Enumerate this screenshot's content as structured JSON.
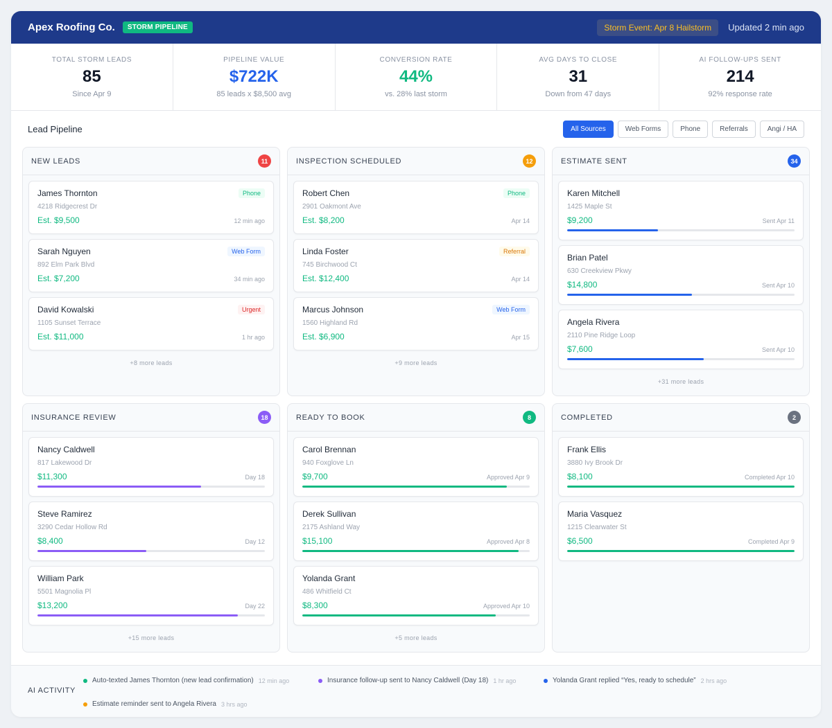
{
  "header": {
    "brand": "Apex Roofing Co.",
    "badge": "STORM PIPELINE",
    "storm_event": "Storm Event: Apr 8 Hailstorm",
    "updated": "Updated 2 min ago"
  },
  "stats": [
    {
      "label": "TOTAL STORM LEADS",
      "value": "85",
      "sub": "Since Apr 9"
    },
    {
      "label": "PIPELINE VALUE",
      "value": "$722K",
      "sub": "85 leads x $8,500 avg"
    },
    {
      "label": "CONVERSION RATE",
      "value": "44%",
      "sub": "vs. 28% last storm"
    },
    {
      "label": "AVG DAYS TO CLOSE",
      "value": "31",
      "sub": "Down from 47 days"
    },
    {
      "label": "AI FOLLOW-UPS SENT",
      "value": "214",
      "sub": "92% response rate"
    }
  ],
  "pipeline": {
    "title": "Lead Pipeline",
    "filters": [
      "All Sources",
      "Web Forms",
      "Phone",
      "Referrals",
      "Angi / HA"
    ]
  },
  "columns": [
    {
      "title": "NEW LEADS",
      "count": "11",
      "color": "#ef4444",
      "cards": [
        {
          "name": "James Thornton",
          "addr": "4218 Ridgecrest Dr",
          "amount": "Est. $9,500",
          "meta": "12 min ago",
          "tag": "Phone"
        },
        {
          "name": "Sarah Nguyen",
          "addr": "892 Elm Park Blvd",
          "amount": "Est. $7,200",
          "meta": "34 min ago",
          "tag": "Web Form"
        },
        {
          "name": "David Kowalski",
          "addr": "1105 Sunset Terrace",
          "amount": "Est. $11,000",
          "meta": "1 hr ago",
          "tag": "Urgent"
        }
      ],
      "more": "+8 more leads"
    },
    {
      "title": "INSPECTION SCHEDULED",
      "count": "12",
      "color": "#f59e0b",
      "cards": [
        {
          "name": "Robert Chen",
          "addr": "2901 Oakmont Ave",
          "amount": "Est. $8,200",
          "meta": "Apr 14",
          "tag": "Phone"
        },
        {
          "name": "Linda Foster",
          "addr": "745 Birchwood Ct",
          "amount": "Est. $12,400",
          "meta": "Apr 14",
          "tag": "Referral"
        },
        {
          "name": "Marcus Johnson",
          "addr": "1560 Highland Rd",
          "amount": "Est. $6,900",
          "meta": "Apr 15",
          "tag": "Web Form"
        }
      ],
      "more": "+9 more leads"
    },
    {
      "title": "ESTIMATE SENT",
      "count": "34",
      "color": "#2563eb",
      "cards": [
        {
          "name": "Karen Mitchell",
          "addr": "1425 Maple St",
          "amount": "$9,200",
          "meta": "Sent Apr 11",
          "progress": 0.4
        },
        {
          "name": "Brian Patel",
          "addr": "630 Creekview Pkwy",
          "amount": "$14,800",
          "meta": "Sent Apr 10",
          "progress": 0.55
        },
        {
          "name": "Angela Rivera",
          "addr": "2110 Pine Ridge Loop",
          "amount": "$7,600",
          "meta": "Sent Apr 10",
          "progress": 0.6
        }
      ],
      "more": "+31 more leads"
    },
    {
      "title": "INSURANCE REVIEW",
      "count": "18",
      "color": "#8b5cf6",
      "cards": [
        {
          "name": "Nancy Caldwell",
          "addr": "817 Lakewood Dr",
          "amount": "$11,300",
          "meta": "Day 18",
          "progress": 0.72
        },
        {
          "name": "Steve Ramirez",
          "addr": "3290 Cedar Hollow Rd",
          "amount": "$8,400",
          "meta": "Day 12",
          "progress": 0.48
        },
        {
          "name": "William Park",
          "addr": "5501 Magnolia Pl",
          "amount": "$13,200",
          "meta": "Day 22",
          "progress": 0.88
        }
      ],
      "more": "+15 more leads"
    },
    {
      "title": "READY TO BOOK",
      "count": "8",
      "color": "#10b981",
      "cards": [
        {
          "name": "Carol Brennan",
          "addr": "940 Foxglove Ln",
          "amount": "$9,700",
          "meta": "Approved Apr 9",
          "progress": 0.9
        },
        {
          "name": "Derek Sullivan",
          "addr": "2175 Ashland Way",
          "amount": "$15,100",
          "meta": "Approved Apr 8",
          "progress": 0.95
        },
        {
          "name": "Yolanda Grant",
          "addr": "486 Whitfield Ct",
          "amount": "$8,300",
          "meta": "Approved Apr 10",
          "progress": 0.85
        }
      ],
      "more": "+5 more leads"
    },
    {
      "title": "COMPLETED",
      "count": "2",
      "color": "#6b7280",
      "cards": [
        {
          "name": "Frank Ellis",
          "addr": "3880 Ivy Brook Dr",
          "amount": "$8,100",
          "meta": "Completed Apr 10",
          "progress": 1.0
        },
        {
          "name": "Maria Vasquez",
          "addr": "1215 Clearwater St",
          "amount": "$6,500",
          "meta": "Completed Apr 9",
          "progress": 1.0
        }
      ],
      "more": ""
    }
  ],
  "activity": {
    "label": "AI ACTIVITY",
    "items": [
      {
        "text": "Auto-texted James Thornton (new lead confirmation)",
        "time": "12 min ago",
        "color": "#10b981"
      },
      {
        "text": "Insurance follow-up sent to Nancy Caldwell (Day 18)",
        "time": "1 hr ago",
        "color": "#8b5cf6"
      },
      {
        "text": "Yolanda Grant replied “Yes, ready to schedule”",
        "time": "2 hrs ago",
        "color": "#2563eb"
      },
      {
        "text": "Estimate reminder sent to Angela Rivera",
        "time": "3 hrs ago",
        "color": "#f59e0b"
      }
    ]
  }
}
